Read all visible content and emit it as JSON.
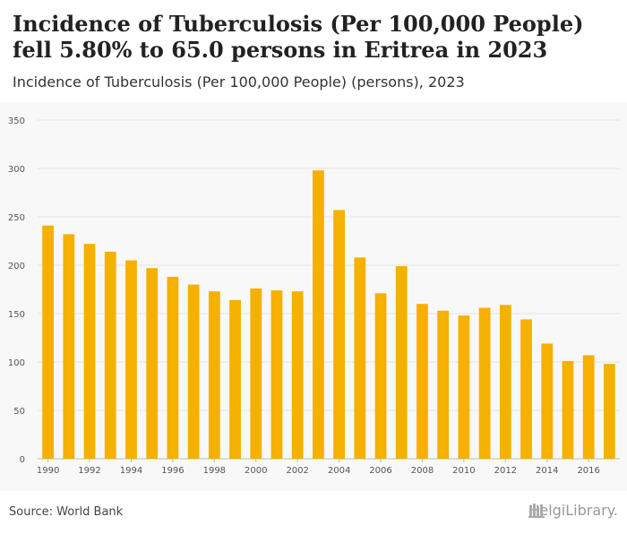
{
  "title": "Incidence of Tuberculosis (Per 100,000 People) fell 5.80% to 65.0 persons in Eritrea in 2023",
  "subtitle": "Incidence of Tuberculosis (Per 100,000 People) (persons), 2023",
  "source": "Source: World Bank",
  "logo_text": "HelgiLibrary.",
  "colors": {
    "bar": "#f5b000",
    "grid": "#e3e3e3",
    "axis_text": "#555555"
  },
  "chart_data": {
    "type": "bar",
    "title": "Incidence of Tuberculosis (Per 100,000 People) fell 5.80% to 65.0 persons in Eritrea in 2023",
    "subtitle": "Incidence of Tuberculosis (Per 100,000 People) (persons), 2023",
    "categories": [
      1990,
      1991,
      1992,
      1993,
      1994,
      1995,
      1996,
      1997,
      1998,
      1999,
      2000,
      2001,
      2002,
      2003,
      2004,
      2005,
      2006,
      2007,
      2008,
      2009,
      2010,
      2011,
      2012,
      2013,
      2014,
      2015,
      2016,
      2017
    ],
    "values": [
      241,
      232,
      222,
      214,
      205,
      197,
      188,
      180,
      173,
      164,
      176,
      174,
      173,
      298,
      257,
      208,
      171,
      199,
      160,
      153,
      148,
      156,
      159,
      144,
      119,
      101,
      107,
      98
    ],
    "x_tick_labels": [
      "1990",
      "1992",
      "1994",
      "1996",
      "1998",
      "2000",
      "2002",
      "2004",
      "2006",
      "2008",
      "2010",
      "2012",
      "2014",
      "2016"
    ],
    "y_ticks": [
      0,
      50,
      100,
      150,
      200,
      250,
      300,
      350
    ],
    "ylim": [
      0,
      350
    ],
    "grid": true,
    "xlabel": "",
    "ylabel": ""
  }
}
